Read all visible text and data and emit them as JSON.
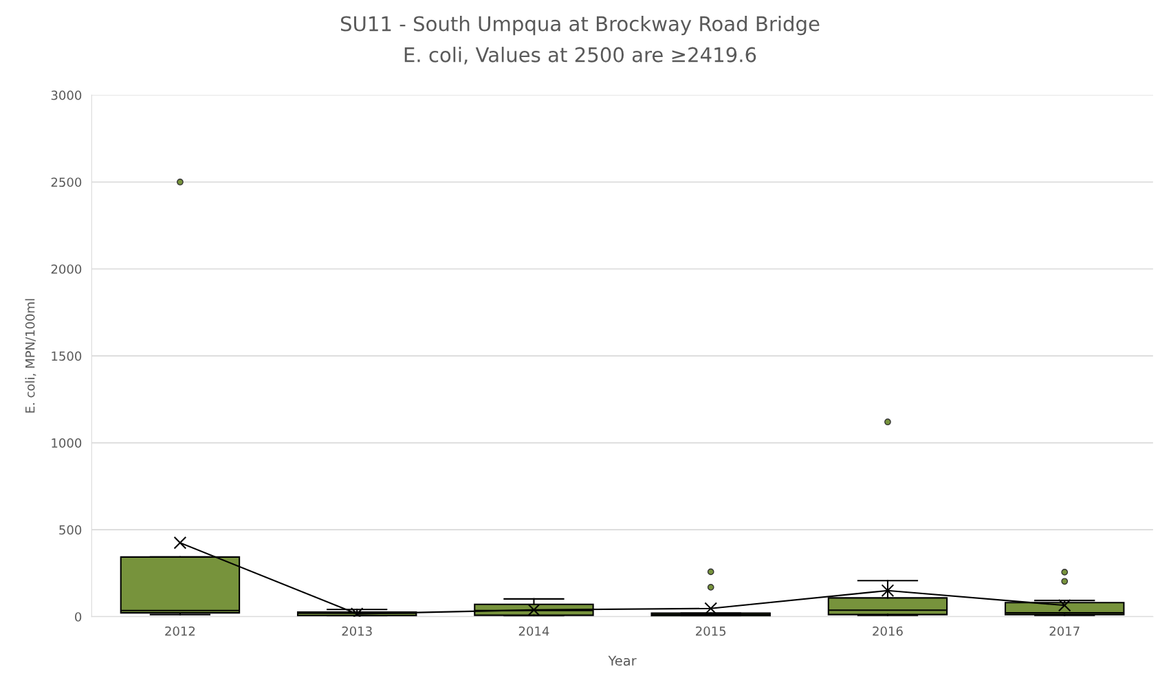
{
  "chart_data": {
    "type": "box",
    "title": "SU11 - South Umpqua at Brockway Road Bridge",
    "subtitle": "E. coli, Values at 2500 are ≥2419.6",
    "xlabel": "Year",
    "ylabel": "E. coli, MPN/100ml",
    "categories": [
      "2012",
      "2013",
      "2014",
      "2015",
      "2016",
      "2017"
    ],
    "series": [
      {
        "color": "#77933c",
        "boxes": [
          {
            "low": 12,
            "q1": 22,
            "median": 35,
            "q3": 343,
            "high": 343,
            "outliers": [
              2500
            ]
          },
          {
            "low": 4,
            "q1": 6,
            "median": 20,
            "q3": 26,
            "high": 41
          },
          {
            "low": 4,
            "q1": 8,
            "median": 35,
            "q3": 71,
            "high": 102
          },
          {
            "low": 2,
            "q1": 2,
            "median": 10,
            "q3": 20,
            "high": 20,
            "outliers": [
              258,
              169
            ]
          },
          {
            "low": 8,
            "q1": 12,
            "median": 37,
            "q3": 108,
            "high": 207,
            "outliers": [
              1120
            ]
          },
          {
            "low": 8,
            "q1": 12,
            "median": 22,
            "q3": 81,
            "high": 93,
            "outliers": [
              256,
              203
            ]
          }
        ]
      },
      {
        "type": "line",
        "color": "#000000",
        "marker": "cross",
        "values": [
          425,
          16,
          39,
          47,
          150,
          65
        ]
      }
    ],
    "ylim": [
      0,
      3000
    ],
    "yticks": [
      0,
      500,
      1000,
      1500,
      2000,
      2500,
      3000
    ],
    "grid": "y",
    "legend": false
  }
}
